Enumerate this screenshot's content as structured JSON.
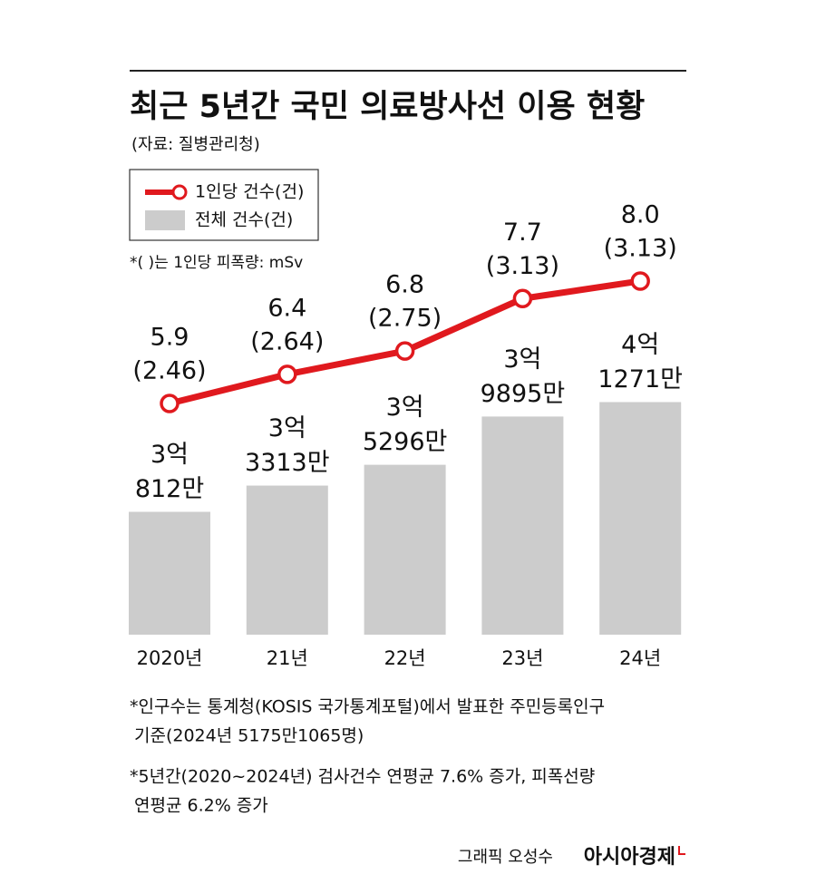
{
  "chart_data": {
    "type": "bar_line",
    "title": "최근 5년간 국민 의료방사선 이용 현황",
    "subtitle": "(자료: 질병관리청)",
    "note": "*( )는 1인당 피폭량: mSv",
    "categories": [
      "2020년",
      "21년",
      "22년",
      "23년",
      "24년"
    ],
    "series": [
      {
        "name": "전체 건수(건)",
        "type": "bar",
        "color": "#cccccc",
        "values": [
          308120000,
          333130000,
          352960000,
          398950000,
          412710000
        ],
        "value_labels": [
          [
            "3억",
            "812만"
          ],
          [
            "3억",
            "3313만"
          ],
          [
            "3억",
            "5296만"
          ],
          [
            "3억",
            "9895만"
          ],
          [
            "4억",
            "1271만"
          ]
        ]
      },
      {
        "name": "1인당 건수(건)",
        "type": "line",
        "color": "#e0191e",
        "values": [
          5.9,
          6.4,
          6.8,
          7.7,
          8.0
        ],
        "value_labels": [
          "5.9",
          "6.4",
          "6.8",
          "7.7",
          "8.0"
        ],
        "dose_values": [
          2.46,
          2.64,
          2.75,
          3.13,
          3.13
        ],
        "dose_labels": [
          "(2.46)",
          "(2.64)",
          "(2.75)",
          "(3.13)",
          "(3.13)"
        ]
      }
    ],
    "footnotes": [
      [
        "*인구수는 통계청(KOSIS 국가통계포털)에서 발표한 주민등록인구",
        "기준(2024년 5175만1065명)"
      ],
      [
        "*5년간(2020~2024년) 검사건수 연평균 7.6% 증가, 피폭선량",
        "연평균 6.2% 증가"
      ]
    ],
    "credit": "그래픽 오성수",
    "source_brand": "아시아경제"
  }
}
